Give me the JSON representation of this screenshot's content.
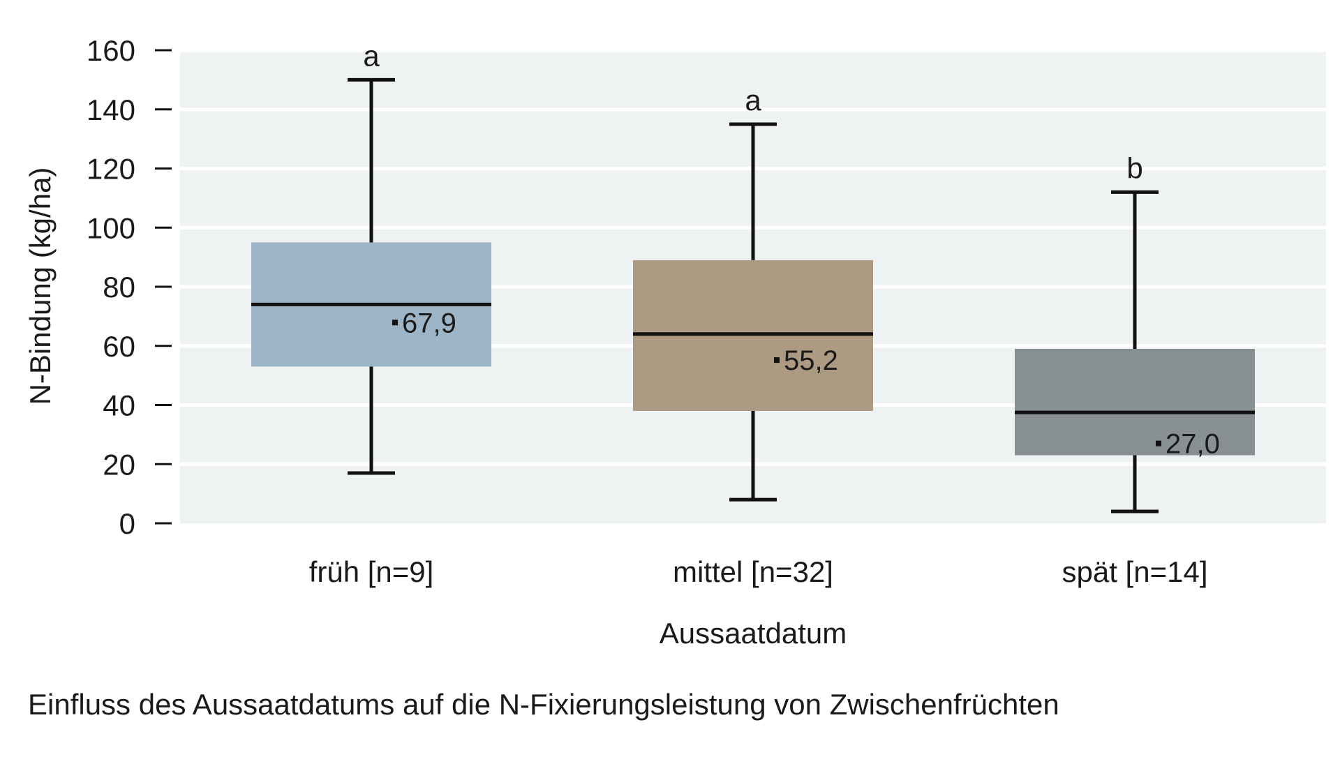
{
  "chart_data": {
    "type": "box",
    "ylabel": "N-Bindung (kg/ha)",
    "xlabel": "Aussaatdatum",
    "ylim": [
      0,
      160
    ],
    "yticks": [
      "0",
      "20",
      "40",
      "60",
      "80",
      "100",
      "120",
      "140",
      "160"
    ],
    "grid": true,
    "categories": [
      "früh [n=9]",
      "mittel [n=32]",
      "spät [n=14]"
    ],
    "boxes": [
      {
        "category": "früh [n=9]",
        "whisker_low": 17,
        "q1": 53,
        "median": 74,
        "q3": 95,
        "whisker_high": 150,
        "mean": 67.9,
        "mean_label": "67,9",
        "significance": "a",
        "color": "#9db5c7"
      },
      {
        "category": "mittel [n=32]",
        "whisker_low": 8,
        "q1": 38,
        "median": 64,
        "q3": 89,
        "whisker_high": 135,
        "mean": 55.2,
        "mean_label": "55,2",
        "significance": "a",
        "color": "#ac9b82"
      },
      {
        "category": "spät [n=14]",
        "whisker_low": 4,
        "q1": 23,
        "median": 37.5,
        "q3": 59,
        "whisker_high": 112,
        "mean": 27.0,
        "mean_label": "27,0",
        "significance": "b",
        "color": "#889094"
      }
    ],
    "caption": "Einfluss des Aussaatdatums auf die N-Fixierungsleistung von Zwischenfrüchten"
  },
  "colors": {
    "plot_background": "#eff2f2",
    "grid": "#ffffff",
    "lines": "#111111"
  }
}
